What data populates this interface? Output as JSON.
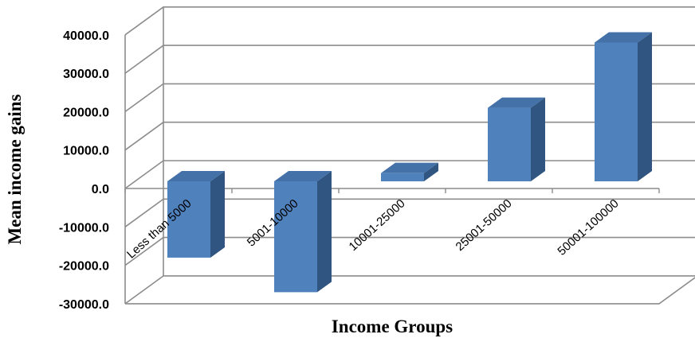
{
  "chart_data": {
    "type": "bar",
    "style": "3d-column",
    "categories": [
      "Less than 5000",
      "5001-10000",
      "10001-25000",
      "25001-50000",
      "50001-100000"
    ],
    "values": [
      -18000,
      -27000,
      4000,
      21000,
      38000
    ],
    "xlabel": "Income Groups",
    "ylabel": "Mean income gains",
    "ylim": [
      -30000,
      40000
    ],
    "yticks": [
      "40000.0",
      "30000.0",
      "20000.0",
      "10000.0",
      "0.0",
      "-10000.0",
      "-20000.0",
      "-30000.0"
    ],
    "grid": true,
    "legend": "none",
    "colors": {
      "bar_front": "#4f81bd",
      "bar_side": "#2f5580",
      "bar_top": "#4472a8",
      "grid": "#8c8c8c",
      "wall": "#ffffff"
    }
  }
}
